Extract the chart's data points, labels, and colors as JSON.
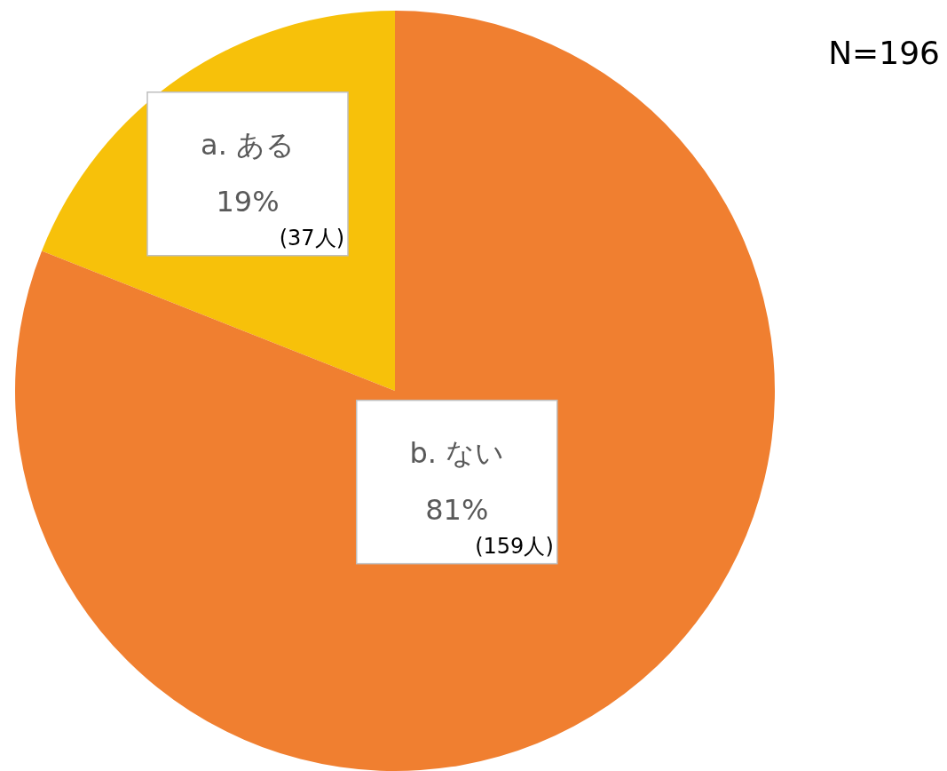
{
  "chart_data": {
    "type": "pie",
    "categories": [
      "a. ある",
      "b. ない"
    ],
    "values": [
      19,
      81
    ],
    "colors": [
      "#f7c10a",
      "#f07f30"
    ],
    "value_labels": [
      "19%",
      "81%"
    ],
    "annotations": [
      {
        "text": "(37人)",
        "x": "a. ある"
      },
      {
        "text": "(159人)",
        "x": "b. ない"
      },
      "N=196"
    ],
    "legend": false
  }
}
